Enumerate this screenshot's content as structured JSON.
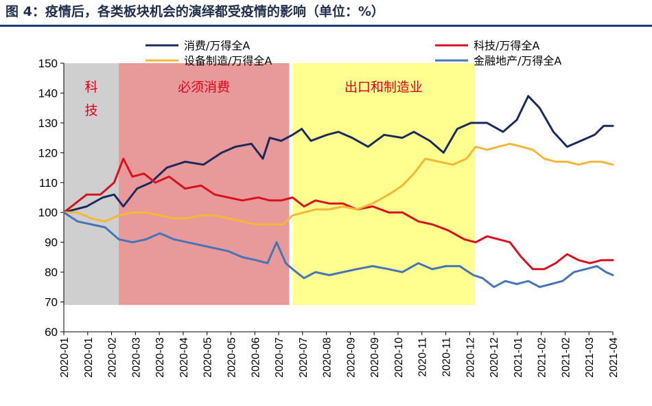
{
  "title": "图 4：疫情后，各类板块机会的演绎都受疫情的影响（单位：%）",
  "colors": {
    "consumer": "#1b2a5e",
    "tech": "#d9101e",
    "equipment": "#f5b735",
    "finance": "#4674b8",
    "band_tech": "#cfcfcf",
    "band_consumer": "#e89a9a",
    "band_export": "#ffff8f"
  },
  "chart_data": {
    "type": "line",
    "title": "图 4：疫情后，各类板块机会的演绎都受疫情的影响（单位：%）",
    "ylim": [
      60,
      150
    ],
    "yticks": [
      60,
      70,
      80,
      90,
      100,
      110,
      120,
      130,
      140,
      150
    ],
    "xtick_labels": [
      "2020-01",
      "2020-01",
      "2020-02",
      "2020-03",
      "2020-03",
      "2020-04",
      "2020-05",
      "2020-05",
      "2020-06",
      "2020-07",
      "2020-07",
      "2020-08",
      "2020-09",
      "2020-09",
      "2020-10",
      "2020-11",
      "2020-11",
      "2020-12",
      "2020-12",
      "2021-01",
      "2021-02",
      "2021-02",
      "2021-03",
      "2021-04"
    ],
    "legend_position": "top",
    "bands": [
      {
        "label": "科技",
        "from": 0,
        "to": 2.4,
        "ymin": 69,
        "ymax": 150,
        "color": "#cfcfcf"
      },
      {
        "label": "必须消费",
        "from": 2.4,
        "to": 9.85,
        "ymin": 69,
        "ymax": 150,
        "color": "#e89a9a"
      },
      {
        "label": "出口和制造业",
        "from": 10.0,
        "to": 17.95,
        "ymin": 69,
        "ymax": 150,
        "color": "#ffff8f"
      }
    ],
    "series": [
      {
        "name": "消费/万得全A",
        "key": "consumer",
        "x": [
          0,
          1,
          1.7,
          2.2,
          2.6,
          3.2,
          3.8,
          4.5,
          5.3,
          6.1,
          6.9,
          7.5,
          8.2,
          8.7,
          9.0,
          9.5,
          10.0,
          10.4,
          10.8,
          11.5,
          12.0,
          12.6,
          13.3,
          14.0,
          14.8,
          15.3,
          16.0,
          16.6,
          17.2,
          17.8,
          18.5,
          19.2,
          19.8,
          20.3,
          20.8,
          21.4,
          22.0,
          22.6,
          23.2,
          23.6,
          24.0
        ],
        "values": [
          100,
          102,
          105,
          106,
          102,
          108,
          110,
          115,
          117,
          116,
          120,
          122,
          123,
          118,
          125,
          124,
          126,
          128,
          124,
          126,
          127,
          125,
          122,
          126,
          125,
          127,
          124,
          120,
          128,
          130,
          130,
          127,
          131,
          139,
          135,
          127,
          122,
          124,
          126,
          129,
          129
        ]
      },
      {
        "name": "科技/万得全A",
        "key": "tech",
        "x": [
          0,
          0.5,
          1.0,
          1.6,
          2.2,
          2.6,
          3.0,
          3.5,
          4.0,
          4.6,
          5.3,
          6.0,
          6.6,
          7.2,
          7.8,
          8.5,
          9.0,
          9.5,
          10.0,
          10.5,
          11.0,
          11.6,
          12.2,
          12.8,
          13.5,
          14.2,
          14.8,
          15.5,
          16.1,
          16.8,
          17.5,
          18.0,
          18.5,
          19.0,
          19.5,
          20.0,
          20.5,
          21.0,
          21.5,
          22.0,
          22.5,
          23.0,
          23.5,
          24.0
        ],
        "values": [
          100,
          103,
          106,
          106,
          110,
          118,
          112,
          113,
          110,
          112,
          108,
          109,
          106,
          105,
          104,
          105,
          104,
          104,
          105,
          102,
          104,
          103,
          103,
          101,
          102,
          100,
          100,
          97,
          96,
          94,
          91,
          90,
          92,
          91,
          90,
          85,
          81,
          81,
          83,
          86,
          84,
          83,
          84,
          84
        ]
      },
      {
        "name": "设备制造/万得全A",
        "key": "equipment",
        "x": [
          0,
          0.6,
          1.2,
          1.8,
          2.4,
          3.0,
          3.6,
          4.2,
          4.8,
          5.4,
          6.0,
          6.6,
          7.2,
          7.8,
          8.4,
          9.0,
          9.6,
          10.0,
          10.5,
          11.0,
          11.6,
          12.2,
          12.8,
          13.5,
          14.2,
          14.8,
          15.3,
          15.8,
          16.4,
          17.0,
          17.6,
          18.0,
          18.5,
          19.0,
          19.5,
          20.0,
          20.5,
          21.0,
          21.5,
          22.0,
          22.5,
          23.0,
          23.5,
          24.0
        ],
        "values": [
          100,
          100,
          98,
          97,
          99,
          100,
          100,
          99,
          98,
          98,
          99,
          99,
          98,
          97,
          96,
          96,
          96,
          99,
          100,
          101,
          101,
          102,
          101,
          103,
          106,
          109,
          113,
          118,
          117,
          116,
          118,
          122,
          121,
          122,
          123,
          122,
          121,
          118,
          117,
          117,
          116,
          117,
          117,
          116
        ]
      },
      {
        "name": "金融地产/万得全A",
        "key": "finance",
        "x": [
          0,
          0.6,
          1.2,
          1.8,
          2.4,
          3.0,
          3.6,
          4.2,
          4.8,
          5.4,
          6.0,
          6.6,
          7.2,
          7.8,
          8.4,
          8.9,
          9.3,
          9.7,
          10.0,
          10.5,
          11.0,
          11.6,
          12.2,
          12.8,
          13.5,
          14.2,
          14.8,
          15.5,
          16.1,
          16.7,
          17.3,
          17.9,
          18.3,
          18.8,
          19.3,
          19.8,
          20.3,
          20.8,
          21.3,
          21.8,
          22.3,
          22.8,
          23.3,
          23.7,
          24.0
        ],
        "values": [
          100,
          97,
          96,
          95,
          91,
          90,
          91,
          93,
          91,
          90,
          89,
          88,
          87,
          85,
          84,
          83,
          90,
          83,
          81,
          78,
          80,
          79,
          80,
          81,
          82,
          81,
          80,
          83,
          81,
          82,
          82,
          79,
          78,
          75,
          77,
          76,
          77,
          75,
          76,
          77,
          80,
          81,
          82,
          80,
          79
        ]
      }
    ]
  }
}
